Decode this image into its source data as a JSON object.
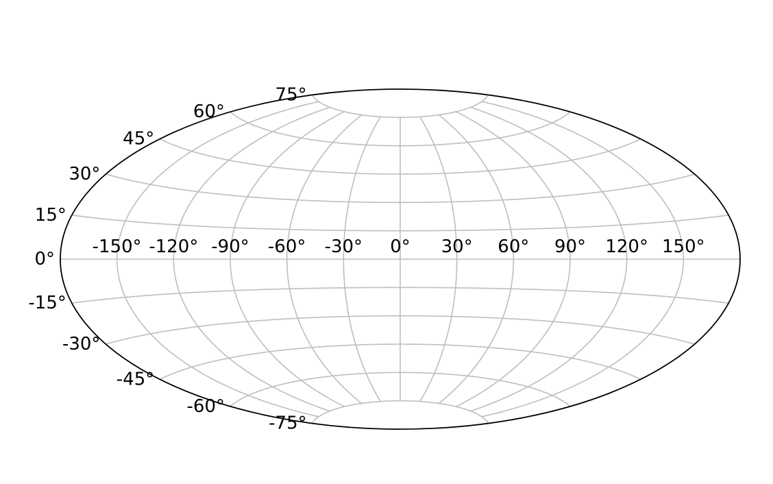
{
  "chart_data": {
    "type": "map",
    "projection": "aitoff",
    "title": "",
    "xlabel": "",
    "ylabel": "",
    "grid": true,
    "longitude_ticks": [
      -150,
      -120,
      -90,
      -60,
      -30,
      0,
      30,
      60,
      90,
      120,
      150
    ],
    "longitude_tick_labels": [
      "-150°",
      "-120°",
      "-90°",
      "-60°",
      "-30°",
      "0°",
      "30°",
      "60°",
      "90°",
      "120°",
      "150°"
    ],
    "latitude_ticks": [
      -75,
      -60,
      -45,
      -30,
      -15,
      0,
      15,
      30,
      45,
      60,
      75
    ],
    "latitude_tick_labels": [
      "-75°",
      "-60°",
      "-45°",
      "-30°",
      "-15°",
      "0°",
      "15°",
      "30°",
      "45°",
      "60°",
      "75°"
    ],
    "xlim": [
      -180,
      180
    ],
    "ylim": [
      -90,
      90
    ],
    "colors": {
      "grid": "#bdbdbd",
      "boundary": "#000000",
      "text": "#000000",
      "background": "#ffffff"
    }
  }
}
